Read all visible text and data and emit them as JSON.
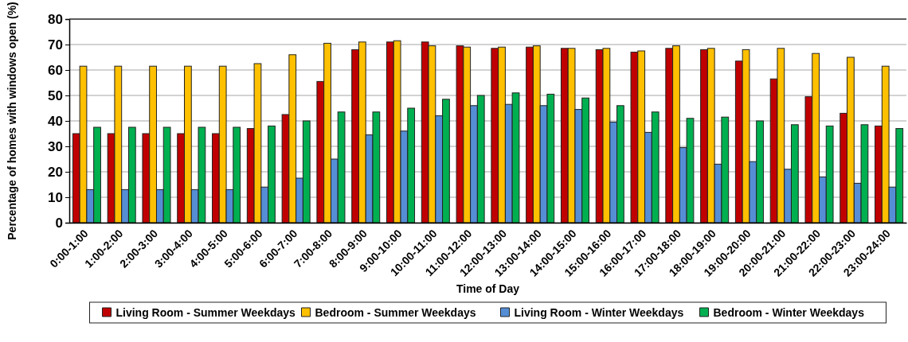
{
  "chart_data": {
    "type": "bar",
    "xlabel": "Time of Day",
    "ylabel": "Percentage of  homes with windows open (%)",
    "categories": [
      "0:00-1:00",
      "1:00-2:00",
      "2:00-3:00",
      "3:00-4:00",
      "4:00-5:00",
      "5:00-6:00",
      "6:00-7:00",
      "7:00-8:00",
      "8:00-9:00",
      "9:00-10:00",
      "10:00-11:00",
      "11:00-12:00",
      "12:00-13:00",
      "13:00-14:00",
      "14:00-15:00",
      "15:00-16:00",
      "16:00-17:00",
      "17:00-18:00",
      "18:00-19:00",
      "19:00-20:00",
      "20:00-21:00",
      "21:00-22:00",
      "22:00-23:00",
      "23:00-24:00"
    ],
    "series": [
      {
        "name": "Living Room - Summer Weekdays",
        "color": "#c00000",
        "values": [
          35,
          35,
          35,
          35,
          35,
          37,
          42.5,
          55.5,
          68,
          71,
          71,
          69.5,
          68.5,
          69,
          68.5,
          68,
          67,
          68.5,
          68,
          63.5,
          56.5,
          49.5,
          43,
          38
        ]
      },
      {
        "name": "Bedroom - Summer Weekdays",
        "color": "#ffc000",
        "values": [
          61.5,
          61.5,
          61.5,
          61.5,
          61.5,
          62.5,
          66,
          70.5,
          71,
          71.5,
          69.5,
          69,
          69,
          69.5,
          68.5,
          68.5,
          67.5,
          69.5,
          68.5,
          68,
          68.5,
          66.5,
          65,
          61.5
        ]
      },
      {
        "name": "Living Room - Winter Weekdays",
        "color": "#558ed5",
        "values": [
          13,
          13,
          13,
          13,
          13,
          14,
          17.5,
          25,
          34.5,
          36,
          42,
          46,
          46.5,
          46,
          44.5,
          39.5,
          35.5,
          29.5,
          23,
          24,
          21,
          18,
          15.5,
          14
        ]
      },
      {
        "name": "Bedroom - Winter Weekdays",
        "color": "#00b050",
        "values": [
          37.5,
          37.5,
          37.5,
          37.5,
          37.5,
          38,
          40,
          43.5,
          43.5,
          45,
          48.5,
          50,
          51,
          50.5,
          49,
          46,
          43.5,
          41,
          41.5,
          40,
          38.5,
          38,
          38.5,
          37
        ]
      }
    ],
    "ylim": [
      0,
      80
    ],
    "yticks": [
      0,
      10,
      20,
      30,
      40,
      50,
      60,
      70,
      80
    ],
    "grid": "y",
    "legend": "bottom"
  }
}
